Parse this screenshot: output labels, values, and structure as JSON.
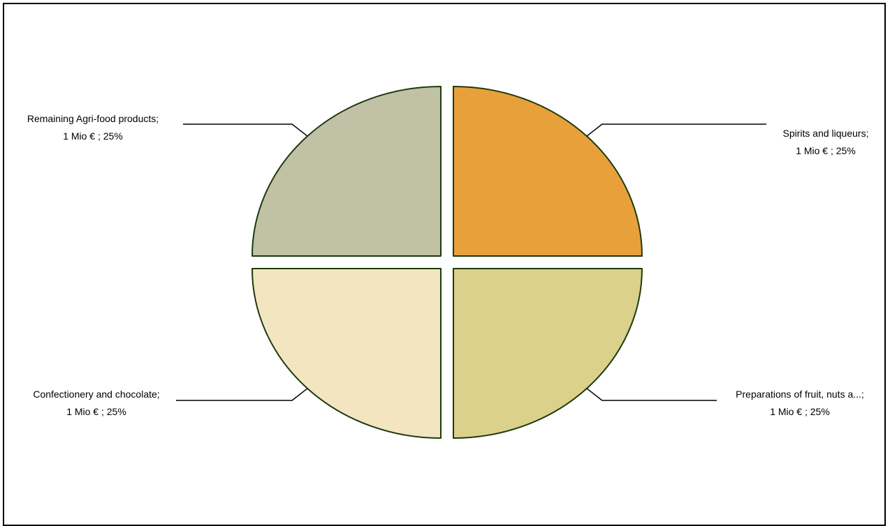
{
  "chart_data": {
    "type": "pie",
    "exploded": true,
    "unit": "Mio €",
    "slices": [
      {
        "category": "Spirits and liqueurs;",
        "value_text": "1 Mio € ; 25%",
        "value": 1,
        "percent": 25,
        "color": "#e8a13a"
      },
      {
        "category": "Preparations of fruit, nuts a...;",
        "value_text": "1 Mio € ; 25%",
        "value": 1,
        "percent": 25,
        "color": "#dcd18a"
      },
      {
        "category": "Confectionery and chocolate;",
        "value_text": "1 Mio € ; 25%",
        "value": 1,
        "percent": 25,
        "color": "#f3e5c0"
      },
      {
        "category": "Remaining Agri-food products;",
        "value_text": "1 Mio € ; 25%",
        "value": 1,
        "percent": 25,
        "color": "#c0c1a5"
      }
    ],
    "slice_outline_color": "#1d3a0f"
  }
}
